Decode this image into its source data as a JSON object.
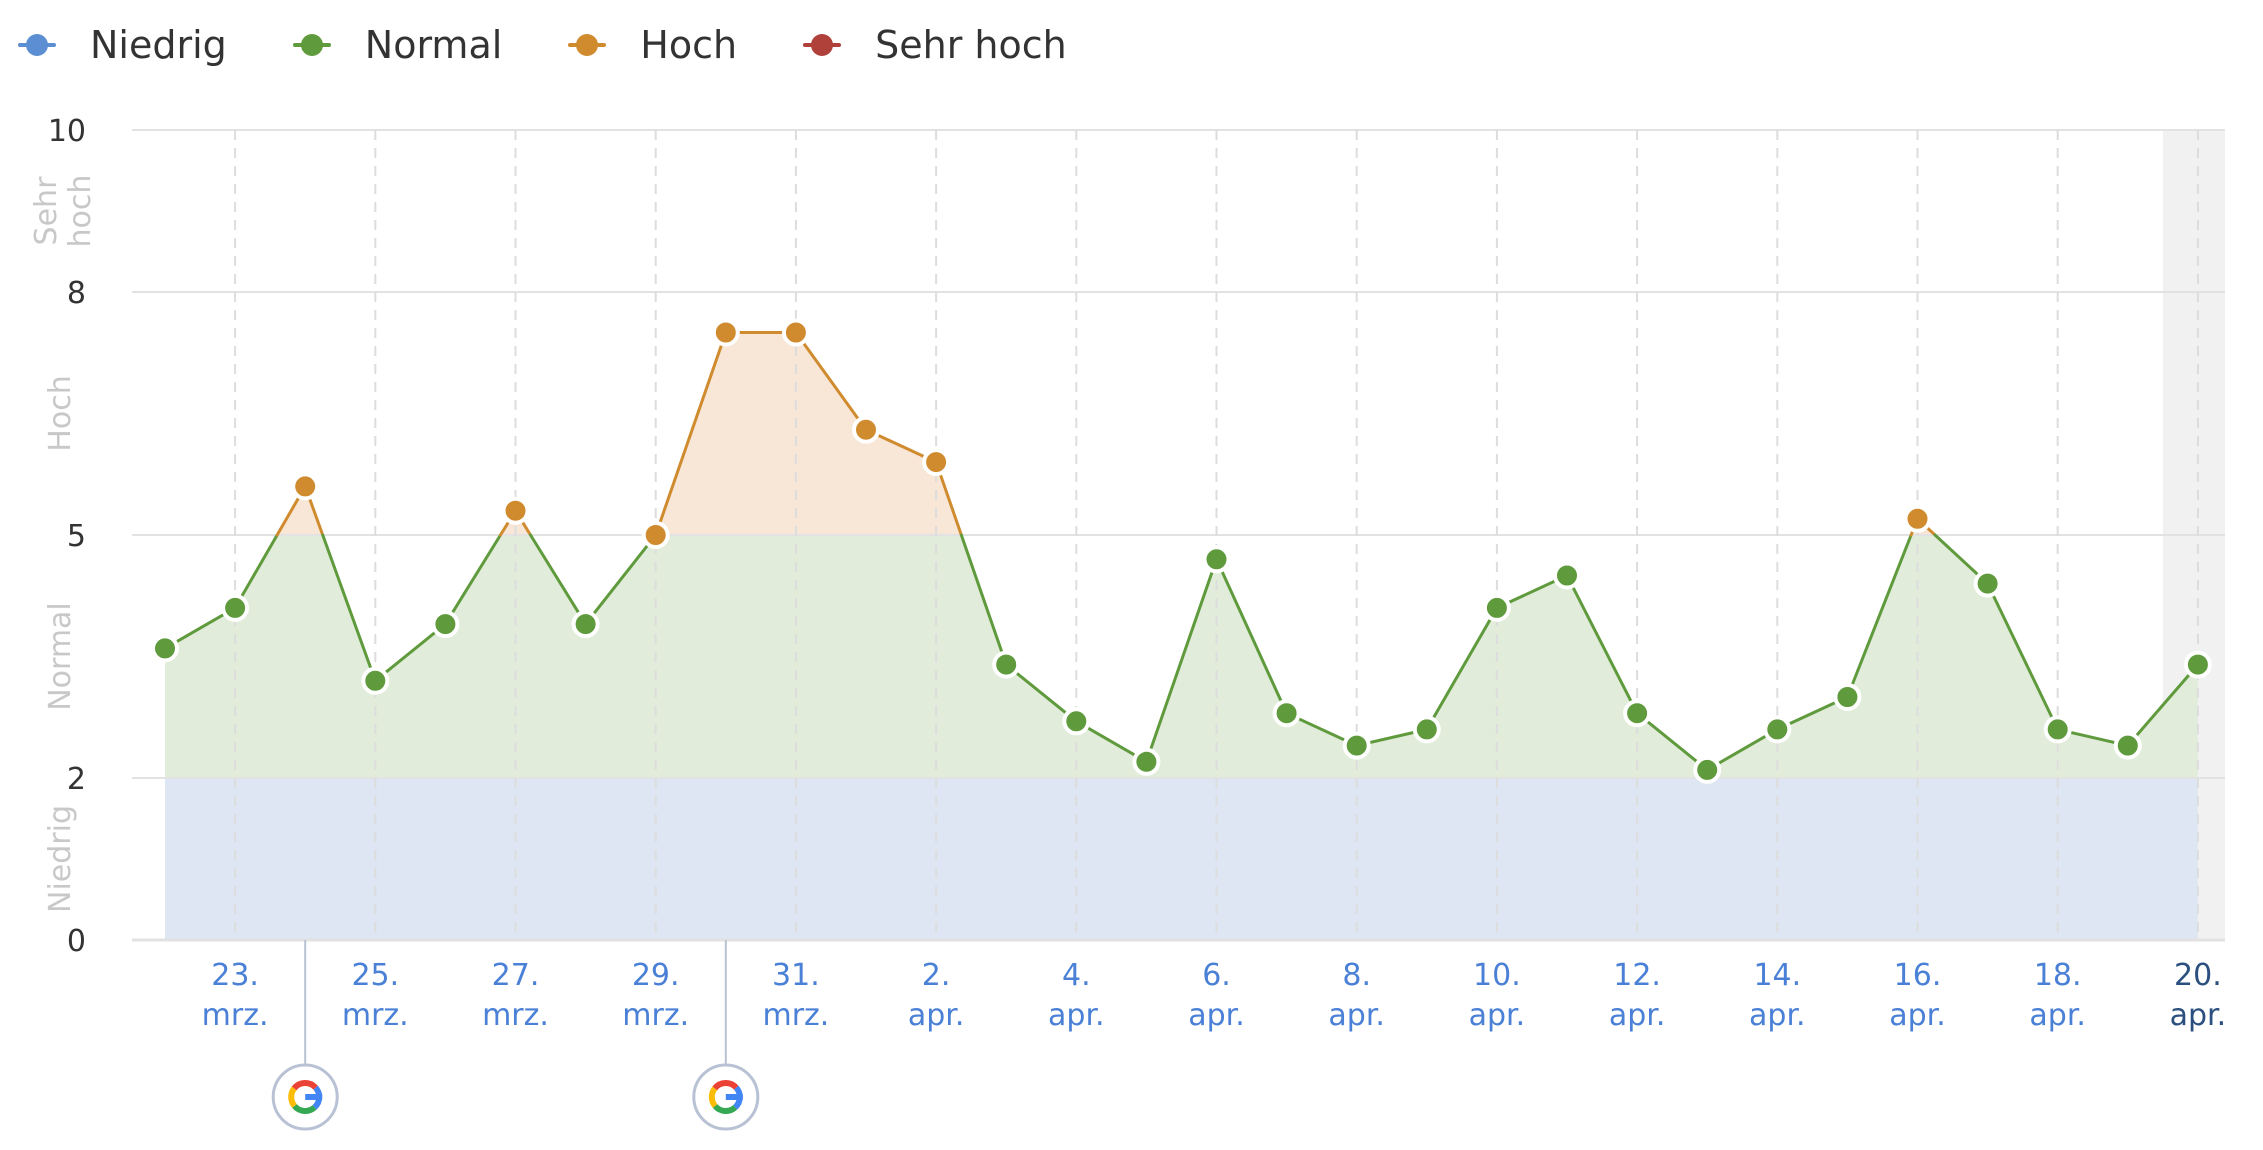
{
  "legend": [
    {
      "label": "Niedrig",
      "color": "#5b8ed2"
    },
    {
      "label": "Normal",
      "color": "#5f9a3d"
    },
    {
      "label": "Hoch",
      "color": "#d08b2f"
    },
    {
      "label": "Sehr hoch",
      "color": "#b0403a"
    }
  ],
  "chart_data": {
    "type": "line",
    "title": "",
    "xlabel": "",
    "ylabel": "",
    "ylim": [
      0,
      10
    ],
    "y_ticks": [
      0,
      2,
      5,
      8,
      10
    ],
    "grid": true,
    "legend_position": "top-left",
    "bands": [
      {
        "label": "Niedrig",
        "from": 0,
        "to": 2,
        "color": "#dde6f2"
      },
      {
        "label": "Normal",
        "from": 2,
        "to": 5,
        "color": "#e1ecda"
      },
      {
        "label": "Hoch",
        "from": 5,
        "to": 8,
        "color": "#f8e6d6"
      },
      {
        "label": "Sehr hoch",
        "from": 8,
        "to": 10,
        "color": "#f6dedd"
      }
    ],
    "x_tick_labels": [
      [
        "23.",
        "mrz."
      ],
      [
        "25.",
        "mrz."
      ],
      [
        "27.",
        "mrz."
      ],
      [
        "29.",
        "mrz."
      ],
      [
        "31.",
        "mrz."
      ],
      [
        "2.",
        "apr."
      ],
      [
        "4.",
        "apr."
      ],
      [
        "6.",
        "apr."
      ],
      [
        "8.",
        "apr."
      ],
      [
        "10.",
        "apr."
      ],
      [
        "12.",
        "apr."
      ],
      [
        "14.",
        "apr."
      ],
      [
        "16.",
        "apr."
      ],
      [
        "18.",
        "apr."
      ],
      [
        "20.",
        "apr."
      ]
    ],
    "dates": [
      "22. mrz.",
      "23. mrz.",
      "24. mrz.",
      "25. mrz.",
      "26. mrz.",
      "27. mrz.",
      "28. mrz.",
      "29. mrz.",
      "30. mrz.",
      "31. mrz.",
      "1. apr.",
      "2. apr.",
      "3. apr.",
      "4. apr.",
      "5. apr.",
      "6. apr.",
      "7. apr.",
      "8. apr.",
      "9. apr.",
      "10. apr.",
      "11. apr.",
      "12. apr.",
      "13. apr.",
      "14. apr.",
      "15. apr.",
      "16. apr.",
      "17. apr.",
      "18. apr.",
      "19. apr.",
      "20. apr."
    ],
    "values": [
      3.6,
      4.1,
      5.6,
      3.2,
      3.9,
      5.3,
      3.9,
      5.0,
      7.5,
      7.5,
      6.3,
      5.9,
      3.4,
      2.7,
      2.2,
      4.7,
      2.8,
      2.4,
      2.6,
      4.1,
      4.5,
      2.8,
      2.1,
      2.6,
      3.0,
      5.2,
      4.4,
      2.6,
      2.4,
      3.4
    ],
    "google_update_markers": [
      "24. mrz.",
      "30. mrz."
    ],
    "highlighted_date": "20. apr.",
    "colors": {
      "line_normal": "#5f9a3d",
      "line_high": "#d08b2f",
      "grid": "#e2e2e2",
      "today_shade": "#f1f1f1"
    }
  }
}
